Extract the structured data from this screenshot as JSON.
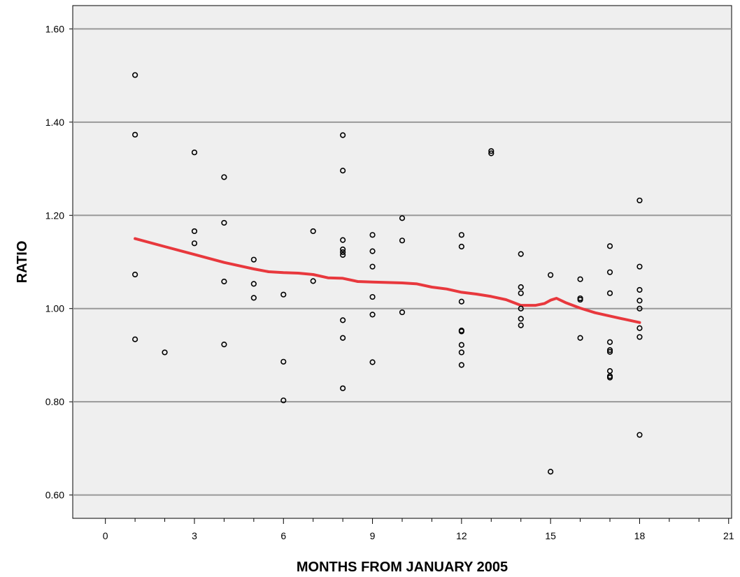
{
  "chart_data": {
    "type": "scatter",
    "title": "",
    "xlabel": "MONTHS FROM JANUARY 2005",
    "ylabel": "RATIO",
    "xlim": [
      -1.1,
      21.1
    ],
    "ylim": [
      0.55,
      1.65
    ],
    "xticks": [
      0,
      3,
      6,
      9,
      12,
      15,
      18,
      21
    ],
    "xtick_labels": [
      "0",
      "3",
      "6",
      "9",
      "12",
      "15",
      "18",
      "21"
    ],
    "yticks": [
      0.6,
      0.8,
      1.0,
      1.2,
      1.4,
      1.6
    ],
    "ytick_labels": [
      "0.60",
      "0.80",
      "1.00",
      "1.20",
      "1.40",
      "1.60"
    ],
    "grid": "horizontal",
    "colors": {
      "plot_background": "#efefef",
      "grid": "#999999",
      "points": "#000000",
      "trend": "#e8383d"
    },
    "points": [
      {
        "x": 1,
        "y": 1.501
      },
      {
        "x": 1,
        "y": 1.373
      },
      {
        "x": 1,
        "y": 1.073
      },
      {
        "x": 1,
        "y": 0.934
      },
      {
        "x": 2,
        "y": 0.906
      },
      {
        "x": 3,
        "y": 1.335
      },
      {
        "x": 3,
        "y": 1.166
      },
      {
        "x": 3,
        "y": 1.14
      },
      {
        "x": 4,
        "y": 1.282
      },
      {
        "x": 4,
        "y": 1.184
      },
      {
        "x": 4,
        "y": 1.058
      },
      {
        "x": 4,
        "y": 0.923
      },
      {
        "x": 5,
        "y": 1.105
      },
      {
        "x": 5,
        "y": 1.053
      },
      {
        "x": 5,
        "y": 1.023
      },
      {
        "x": 6,
        "y": 1.03
      },
      {
        "x": 6,
        "y": 0.886
      },
      {
        "x": 6,
        "y": 0.803
      },
      {
        "x": 7,
        "y": 1.166
      },
      {
        "x": 7,
        "y": 1.059
      },
      {
        "x": 8,
        "y": 1.372
      },
      {
        "x": 8,
        "y": 1.296
      },
      {
        "x": 8,
        "y": 1.147
      },
      {
        "x": 8,
        "y": 1.127
      },
      {
        "x": 8,
        "y": 1.121
      },
      {
        "x": 8,
        "y": 1.115
      },
      {
        "x": 8,
        "y": 0.975
      },
      {
        "x": 8,
        "y": 0.937
      },
      {
        "x": 8,
        "y": 0.829
      },
      {
        "x": 9,
        "y": 1.158
      },
      {
        "x": 9,
        "y": 1.123
      },
      {
        "x": 9,
        "y": 1.09
      },
      {
        "x": 9,
        "y": 1.025
      },
      {
        "x": 9,
        "y": 0.987
      },
      {
        "x": 9,
        "y": 0.885
      },
      {
        "x": 10,
        "y": 1.194
      },
      {
        "x": 10,
        "y": 1.146
      },
      {
        "x": 10,
        "y": 0.992
      },
      {
        "x": 12,
        "y": 1.158
      },
      {
        "x": 12,
        "y": 1.133
      },
      {
        "x": 12,
        "y": 1.015
      },
      {
        "x": 12,
        "y": 0.953
      },
      {
        "x": 12,
        "y": 0.951
      },
      {
        "x": 12,
        "y": 0.922
      },
      {
        "x": 12,
        "y": 0.906
      },
      {
        "x": 12,
        "y": 0.879
      },
      {
        "x": 13,
        "y": 1.338
      },
      {
        "x": 13,
        "y": 1.333
      },
      {
        "x": 14,
        "y": 1.117
      },
      {
        "x": 14,
        "y": 1.046
      },
      {
        "x": 14,
        "y": 1.033
      },
      {
        "x": 14,
        "y": 1.0
      },
      {
        "x": 14,
        "y": 0.978
      },
      {
        "x": 14,
        "y": 0.964
      },
      {
        "x": 15,
        "y": 1.072
      },
      {
        "x": 15,
        "y": 0.65
      },
      {
        "x": 16,
        "y": 1.063
      },
      {
        "x": 16,
        "y": 1.022
      },
      {
        "x": 16,
        "y": 1.019
      },
      {
        "x": 16,
        "y": 0.937
      },
      {
        "x": 17,
        "y": 1.134
      },
      {
        "x": 17,
        "y": 1.078
      },
      {
        "x": 17,
        "y": 1.033
      },
      {
        "x": 17,
        "y": 0.928
      },
      {
        "x": 17,
        "y": 0.911
      },
      {
        "x": 17,
        "y": 0.907
      },
      {
        "x": 17,
        "y": 0.866
      },
      {
        "x": 17,
        "y": 0.855
      },
      {
        "x": 17,
        "y": 0.852
      },
      {
        "x": 18,
        "y": 1.232
      },
      {
        "x": 18,
        "y": 1.09
      },
      {
        "x": 18,
        "y": 1.04
      },
      {
        "x": 18,
        "y": 1.017
      },
      {
        "x": 18,
        "y": 1.0
      },
      {
        "x": 18,
        "y": 0.958
      },
      {
        "x": 18,
        "y": 0.939
      },
      {
        "x": 18,
        "y": 0.729
      }
    ],
    "trend_line": {
      "x": [
        1,
        2,
        3,
        4,
        5,
        5.5,
        6,
        6.5,
        7,
        7.5,
        8,
        8.5,
        9,
        9.5,
        10,
        10.5,
        11,
        11.5,
        12,
        12.5,
        13,
        13.5,
        14,
        14.5,
        14.8,
        15,
        15.2,
        15.5,
        16,
        16.5,
        17,
        17.5,
        18
      ],
      "y": [
        1.15,
        1.133,
        1.116,
        1.099,
        1.085,
        1.079,
        1.077,
        1.076,
        1.073,
        1.066,
        1.065,
        1.058,
        1.057,
        1.056,
        1.055,
        1.053,
        1.046,
        1.042,
        1.035,
        1.031,
        1.026,
        1.019,
        1.007,
        1.007,
        1.011,
        1.018,
        1.022,
        1.013,
        1.001,
        0.991,
        0.984,
        0.977,
        0.97
      ]
    }
  }
}
